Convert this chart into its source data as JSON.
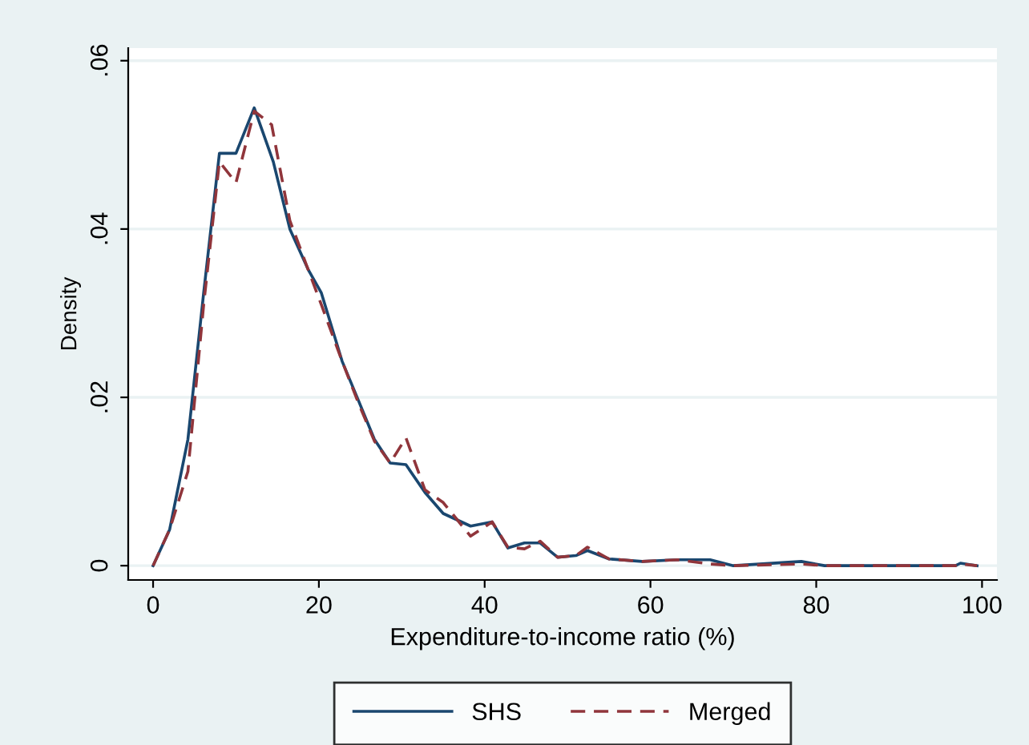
{
  "chart_data": {
    "type": "line",
    "xlabel": "Expenditure-to-income ratio (%)",
    "ylabel": "Density",
    "xlim": [
      -3,
      101.8
    ],
    "ylim": [
      -0.0017,
      0.0615
    ],
    "xticks": [
      0,
      20,
      40,
      60,
      80,
      100
    ],
    "yticks": [
      {
        "value": 0,
        "label": "0"
      },
      {
        "value": 0.02,
        "label": ".02"
      },
      {
        "value": 0.04,
        "label": ".04"
      },
      {
        "value": 0.06,
        "label": ".06"
      }
    ],
    "grid": "y",
    "legend": "bottom",
    "series": [
      {
        "name": "SHS",
        "color": "#1a476f",
        "line_style": "solid",
        "x": [
          0,
          2,
          4.2,
          6.1,
          8,
          10,
          12.2,
          14.5,
          16.5,
          18.7,
          20.3,
          22.8,
          24.7,
          26.7,
          28.6,
          30.5,
          32.8,
          35,
          38.3,
          40.9,
          42.8,
          44.8,
          46.7,
          48.8,
          51,
          52.4,
          55,
          59,
          63.3,
          67.2,
          70,
          78.2,
          81,
          96.8,
          97.4,
          99.4
        ],
        "values": [
          0,
          0.0043,
          0.015,
          0.0324,
          0.049,
          0.049,
          0.0544,
          0.048,
          0.04,
          0.0352,
          0.0324,
          0.0243,
          0.0198,
          0.015,
          0.0122,
          0.012,
          0.0087,
          0.0062,
          0.0047,
          0.0052,
          0.0021,
          0.0027,
          0.0027,
          0.001,
          0.0012,
          0.0018,
          0.0008,
          0.0005,
          0.0007,
          0.0007,
          0,
          0.0005,
          0,
          0,
          0.0003,
          0
        ]
      },
      {
        "name": "Merged",
        "color": "#90353b",
        "line_style": "dashed",
        "x": [
          0,
          2,
          4.2,
          6.1,
          8,
          10,
          12.2,
          14.3,
          16.5,
          18.7,
          20.3,
          22.8,
          24.7,
          26.7,
          28.6,
          30.5,
          32.8,
          35,
          38.3,
          40.9,
          42.8,
          44.8,
          46.7,
          48.8,
          51,
          52.4,
          55,
          59,
          63.3,
          67.2,
          70,
          78.2,
          81,
          96.8,
          97.4,
          99.4
        ],
        "values": [
          0,
          0.0043,
          0.0112,
          0.031,
          0.048,
          0.0455,
          0.054,
          0.0524,
          0.041,
          0.0352,
          0.031,
          0.0243,
          0.0195,
          0.0148,
          0.0122,
          0.0152,
          0.009,
          0.0075,
          0.0035,
          0.0052,
          0.0022,
          0.002,
          0.0029,
          0.001,
          0.0012,
          0.0022,
          0.0008,
          0.0005,
          0.0007,
          0.0002,
          0,
          0.0002,
          0,
          0,
          0.0002,
          0
        ]
      }
    ]
  }
}
